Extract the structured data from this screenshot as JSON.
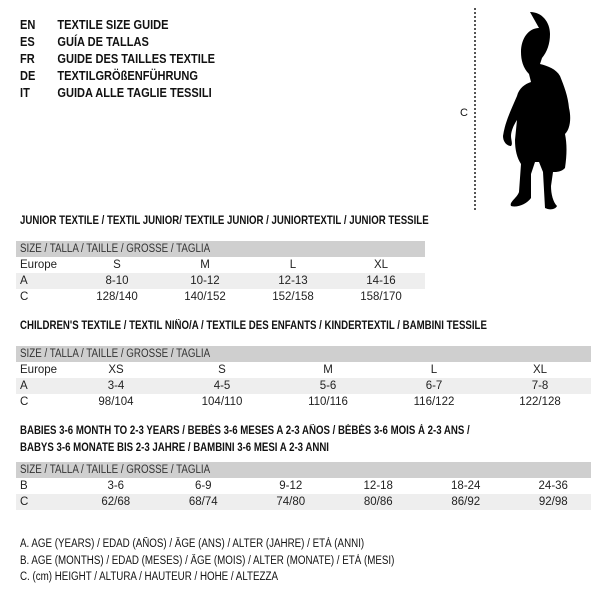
{
  "titles": [
    {
      "code": "EN",
      "text": "TEXTILE SIZE GUIDE"
    },
    {
      "code": "ES",
      "text": "GUÍA DE TALLAS"
    },
    {
      "code": "FR",
      "text": "GUIDE DES TAILLES TEXTILE"
    },
    {
      "code": "DE",
      "text": "TEXTILGRÖßENFÜHRUNG"
    },
    {
      "code": "IT",
      "text": "GUIDA ALLE TAGLIE TESSILI"
    }
  ],
  "figure": {
    "measure_label": "C",
    "icon": "child-silhouette"
  },
  "junior": {
    "heading": "JUNIOR TEXTILE / TEXTIL JUNIOR/ TEXTILE JUNIOR / JUNIORTEXTIL / JUNIOR TESSILE",
    "size_header": "SIZE / TALLA / TAILLE / GRÖSSE / TAGLIA",
    "rows": [
      {
        "label": "Europe",
        "values": [
          "S",
          "M",
          "L",
          "XL"
        ]
      },
      {
        "label": "A",
        "values": [
          "8-10",
          "10-12",
          "12-13",
          "14-16"
        ]
      },
      {
        "label": "C",
        "values": [
          "128/140",
          "140/152",
          "152/158",
          "158/170"
        ]
      }
    ]
  },
  "children": {
    "heading": "CHILDREN'S TEXTILE / TEXTIL NIÑO/A / TEXTILE DES ENFANTS / KINDERTEXTIL / BAMBINI TESSILE",
    "size_header": "SIZE / TALLA / TAILLE / GRÖSSE / TAGLIA",
    "rows": [
      {
        "label": "Europe",
        "values": [
          "XS",
          "S",
          "M",
          "L",
          "XL"
        ]
      },
      {
        "label": "A",
        "values": [
          "3-4",
          "4-5",
          "5-6",
          "6-7",
          "7-8"
        ]
      },
      {
        "label": "C",
        "values": [
          "98/104",
          "104/110",
          "110/116",
          "116/122",
          "122/128"
        ]
      }
    ]
  },
  "babies": {
    "heading_line1": "BABIES 3-6 MONTH TO 2-3 YEARS / BEBÉS 3-6 MESES A 2-3 AÑOS / BÉBÉS 3-6 MOIS À 2-3 ANS /",
    "heading_line2": "BABYS 3-6 MONATE BIS 2-3 JAHRE / BAMBINI 3-6 MESI A 2-3 ANNI",
    "size_header": "SIZE / TALLA / TAILLE / GRÖSSE / TAGLIA",
    "rows": [
      {
        "label": "B",
        "values": [
          "3-6",
          "6-9",
          "9-12",
          "12-18",
          "18-24",
          "24-36"
        ]
      },
      {
        "label": "C",
        "values": [
          "62/68",
          "68/74",
          "74/80",
          "80/86",
          "86/92",
          "92/98"
        ]
      }
    ]
  },
  "legend": [
    "A. AGE (YEARS) / EDAD (AÑOS) / ÂGE (ANS) / ALTER (JAHRE) / ETÀ (ANNI)",
    "B. AGE (MONTHS) / EDAD (MESES) / ÂGE (MOIS) / ALTER (MONATE) / ETÀ (MESI)",
    "C. (cm) HEIGHT / ALTURA / HAUTEUR / HÖHE / ALTEZZA"
  ]
}
